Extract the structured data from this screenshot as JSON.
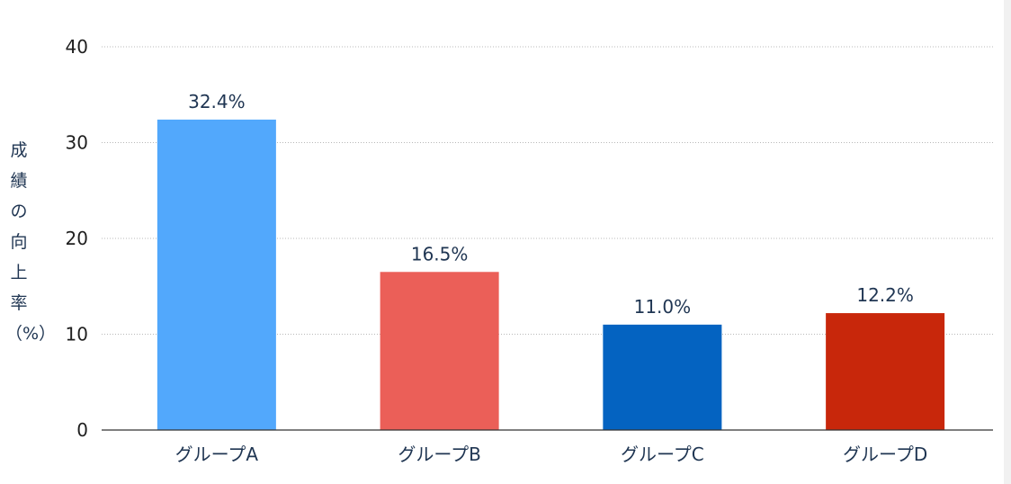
{
  "chart_data": {
    "type": "bar",
    "categories": [
      "グループA",
      "グループB",
      "グループC",
      "グループD"
    ],
    "values": [
      32.4,
      16.5,
      11.0,
      12.2
    ],
    "data_labels": [
      "32.4%",
      "16.5%",
      "11.0%",
      "12.2%"
    ],
    "colors": [
      "#52a8fc",
      "#eb5f58",
      "#0463c1",
      "#c8270b"
    ],
    "title": "",
    "xlabel": "",
    "ylabel": "成績の向上率（%）",
    "ylabel_lines": [
      "成",
      "績",
      "の",
      "向",
      "上",
      "率",
      "（%）"
    ],
    "ylim": [
      0,
      40
    ],
    "yticks": [
      0,
      10,
      20,
      30,
      40
    ],
    "grid": true,
    "legend": "none"
  }
}
